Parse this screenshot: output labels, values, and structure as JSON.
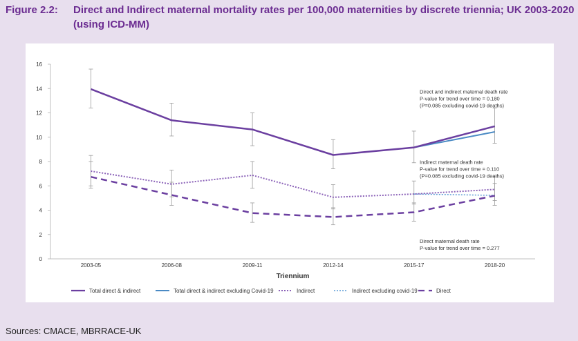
{
  "figure": {
    "label": "Figure 2.2:",
    "title": "Direct and Indirect maternal mortality rates per 100,000 maternities by discrete triennia; UK 2003-2020 (using ICD-MM)"
  },
  "sources": "Sources: CMACE, MBRRACE-UK",
  "chart_data": {
    "type": "line",
    "xlabel": "Triennium",
    "ylabel": "",
    "ylim": [
      0,
      16
    ],
    "yticks": [
      0,
      2,
      4,
      6,
      8,
      10,
      12,
      14,
      16
    ],
    "categories": [
      "2003-05",
      "2006-08",
      "2009-11",
      "2012-14",
      "2015-17",
      "2018-20"
    ],
    "grid": false,
    "legend_position": "bottom",
    "series": [
      {
        "name": "Total direct & indirect",
        "style": "solid",
        "color": "#6b3fa0",
        "width": 2.5,
        "values": [
          13.95,
          11.39,
          10.63,
          8.54,
          9.16,
          10.9
        ],
        "error_low": [
          12.4,
          10.1,
          9.3,
          7.4,
          7.9,
          9.5
        ],
        "error_high": [
          15.6,
          12.8,
          12.0,
          9.8,
          10.5,
          12.4
        ]
      },
      {
        "name": "Total direct & indirect excluding Covid-19",
        "style": "solid",
        "color": "#4a8ac4",
        "width": 2.0,
        "values": [
          null,
          null,
          null,
          null,
          9.16,
          10.44
        ]
      },
      {
        "name": "Indirect",
        "style": "dotted",
        "color": "#8b62b8",
        "width": 2.0,
        "values": [
          7.21,
          6.14,
          6.87,
          5.06,
          5.33,
          5.71
        ],
        "error_low": [
          6.0,
          5.1,
          5.8,
          4.1,
          4.5,
          4.8
        ],
        "error_high": [
          8.5,
          7.3,
          8.0,
          6.1,
          6.4,
          6.8
        ]
      },
      {
        "name": "Indirect excluding covid-19",
        "style": "dotted",
        "color": "#5b9bd5",
        "width": 1.5,
        "values": [
          null,
          null,
          null,
          null,
          5.33,
          5.22
        ]
      },
      {
        "name": "Direct",
        "style": "dashed",
        "color": "#6b3fa0",
        "width": 2.5,
        "values": [
          6.74,
          5.25,
          3.76,
          3.44,
          3.83,
          5.19
        ],
        "error_low": [
          5.8,
          4.4,
          3.0,
          2.8,
          3.1,
          4.4
        ],
        "error_high": [
          8.0,
          6.3,
          4.6,
          4.2,
          4.6,
          6.2
        ]
      }
    ],
    "annotations": [
      {
        "lines": [
          "Direct and indirect maternal death rate",
          "P-value for trend over time = 0.180",
          "(P=0.085 excluding covid-19 deaths)"
        ],
        "y": 13.6
      },
      {
        "lines": [
          "Indirect maternal death rate",
          "P-value for trend over time = 0.110",
          "(P=0.085 excluding covid-19 deaths)"
        ],
        "y": 7.8
      },
      {
        "lines": [
          "Direct maternal death rate",
          "P-value for trend over time = 0.277"
        ],
        "y": 1.3
      }
    ]
  }
}
